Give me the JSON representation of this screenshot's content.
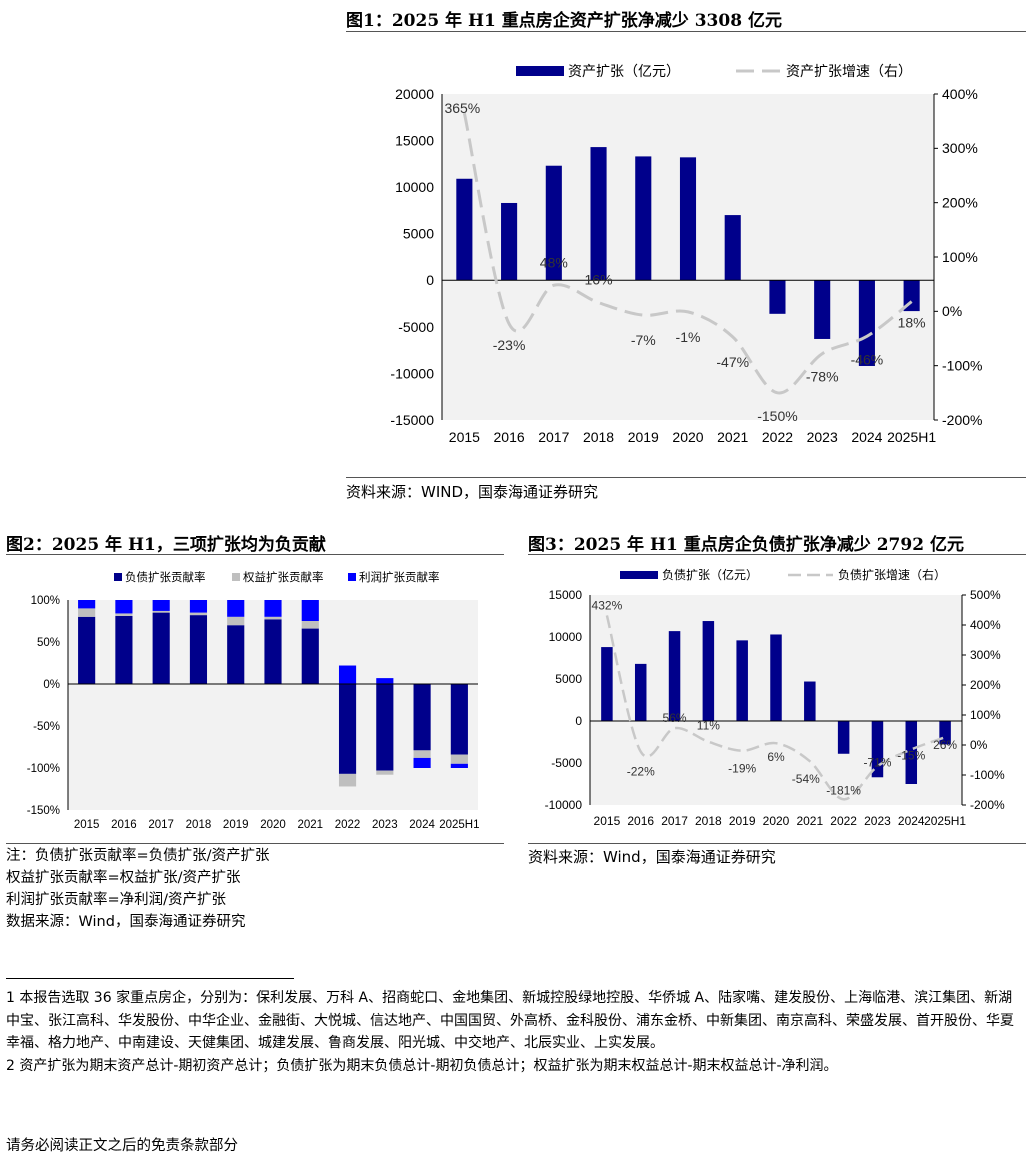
{
  "fig1": {
    "title": "图1：2025 年 H1 重点房企资产扩张净减少 3308 亿元",
    "source": "资料来源：WIND，国泰海通证券研究"
  },
  "fig2": {
    "title": "图2：2025 年 H1，三项扩张均为负贡献",
    "notes": [
      "注：负债扩张贡献率=负债扩张/资产扩张",
      "权益扩张贡献率=权益扩张/资产扩张",
      "利润扩张贡献率=净利润/资产扩张",
      "数据来源：Wind，国泰海通证券研究"
    ]
  },
  "fig3": {
    "title": "图3：2025 年 H1 重点房企负债扩张净减少 2792 亿元",
    "source": "资料来源：Wind，国泰海通证券研究"
  },
  "footnotes": [
    "1  本报告选取 36 家重点房企，分别为：保利发展、万科 A、招商蛇口、金地集团、新城控股绿地控股、华侨城 A、陆家嘴、建发股份、上海临港、滨江集团、新湖中宝、张江高科、华发股份、中华企业、金融街、大悦城、信达地产、中国国贸、外高桥、金科股份、浦东金桥、中新集团、南京高科、荣盛发展、首开股份、华夏幸福、格力地产、中南建设、天健集团、城建发展、鲁商发展、阳光城、中交地产、北辰实业、上实发展。",
    "2  资产扩张为期末资产总计-期初资产总计；负债扩张为期末负债总计-期初负债总计；权益扩张为期末权益总计-期末权益总计-净利润。"
  ],
  "disclaimer": "请务必阅读正文之后的免责条款部分",
  "colors": {
    "bar": "#00008b",
    "line": "#c8c8c8",
    "equity": "#bfbfbf",
    "profit": "#0000ff",
    "plot_bg": "#f2f2f2"
  },
  "chart_data": [
    {
      "id": "fig1",
      "type": "bar",
      "categories": [
        "2015",
        "2016",
        "2017",
        "2018",
        "2019",
        "2020",
        "2021",
        "2022",
        "2023",
        "2024",
        "2025H1"
      ],
      "series": [
        {
          "name": "资产扩张（亿元）",
          "type": "bar",
          "axis": "left",
          "values": [
            10900,
            8300,
            12300,
            14300,
            13300,
            13200,
            7000,
            -3600,
            -6300,
            -9200,
            -3308
          ]
        },
        {
          "name": "资产扩张增速（右）",
          "type": "line",
          "axis": "right",
          "values": [
            365,
            -23,
            48,
            16,
            -7,
            -1,
            -47,
            -150,
            -78,
            -46,
            18
          ]
        }
      ],
      "data_labels": [
        "365%",
        "-23%",
        "48%",
        "16%",
        "-7%",
        "-1%",
        "-47%",
        "-150%",
        "-78%",
        "-46%",
        "18%"
      ],
      "yticks": [
        "20000",
        "15000",
        "10000",
        "5000",
        "0",
        "-5000",
        "-10000",
        "-15000"
      ],
      "y2ticks": [
        "400%",
        "300%",
        "200%",
        "100%",
        "0%",
        "-100%",
        "-200%"
      ],
      "ylim": [
        -15000,
        20000
      ],
      "y2lim": [
        -200,
        400
      ],
      "legend_position": "top"
    },
    {
      "id": "fig2",
      "type": "bar",
      "stacked": true,
      "categories": [
        "2015",
        "2016",
        "2017",
        "2018",
        "2019",
        "2020",
        "2021",
        "2022",
        "2023",
        "2024",
        "2025H1"
      ],
      "series": [
        {
          "name": "负债扩张贡献率",
          "values": [
            80,
            81,
            85,
            82,
            70,
            77,
            66,
            -107,
            -103,
            -79,
            -84
          ]
        },
        {
          "name": "权益扩张贡献率",
          "values": [
            10,
            3,
            2,
            3,
            10,
            3,
            9,
            -15,
            -5,
            -9,
            -11
          ]
        },
        {
          "name": "利润扩张贡献率",
          "values": [
            10,
            16,
            13,
            15,
            20,
            20,
            25,
            22,
            7,
            -12,
            -5
          ]
        }
      ],
      "yticks": [
        "100%",
        "50%",
        "0%",
        "-50%",
        "-100%",
        "-150%"
      ],
      "ylim": [
        -150,
        100
      ],
      "legend_position": "top"
    },
    {
      "id": "fig3",
      "type": "bar",
      "categories": [
        "2015",
        "2016",
        "2017",
        "2018",
        "2019",
        "2020",
        "2021",
        "2022",
        "2023",
        "2024",
        "2025H1"
      ],
      "series": [
        {
          "name": "负债扩张（亿元）",
          "type": "bar",
          "axis": "left",
          "values": [
            8800,
            6800,
            10700,
            11900,
            9600,
            10300,
            4700,
            -3900,
            -6700,
            -7500,
            -2792
          ]
        },
        {
          "name": "负债扩张增速（右）",
          "type": "line",
          "axis": "right",
          "values": [
            432,
            -22,
            56,
            11,
            -19,
            6,
            -54,
            -181,
            -71,
            -15,
            26
          ]
        }
      ],
      "data_labels": [
        "432%",
        "-22%",
        "56%",
        "11%",
        "-19%",
        "6%",
        "-54%",
        "-181%",
        "-71%",
        "-15%",
        "26%"
      ],
      "yticks": [
        "15000",
        "10000",
        "5000",
        "0",
        "-5000",
        "-10000"
      ],
      "y2ticks": [
        "500%",
        "400%",
        "300%",
        "200%",
        "100%",
        "0%",
        "-100%",
        "-200%"
      ],
      "ylim": [
        -10000,
        15000
      ],
      "y2lim": [
        -200,
        500
      ],
      "legend_position": "top"
    }
  ]
}
